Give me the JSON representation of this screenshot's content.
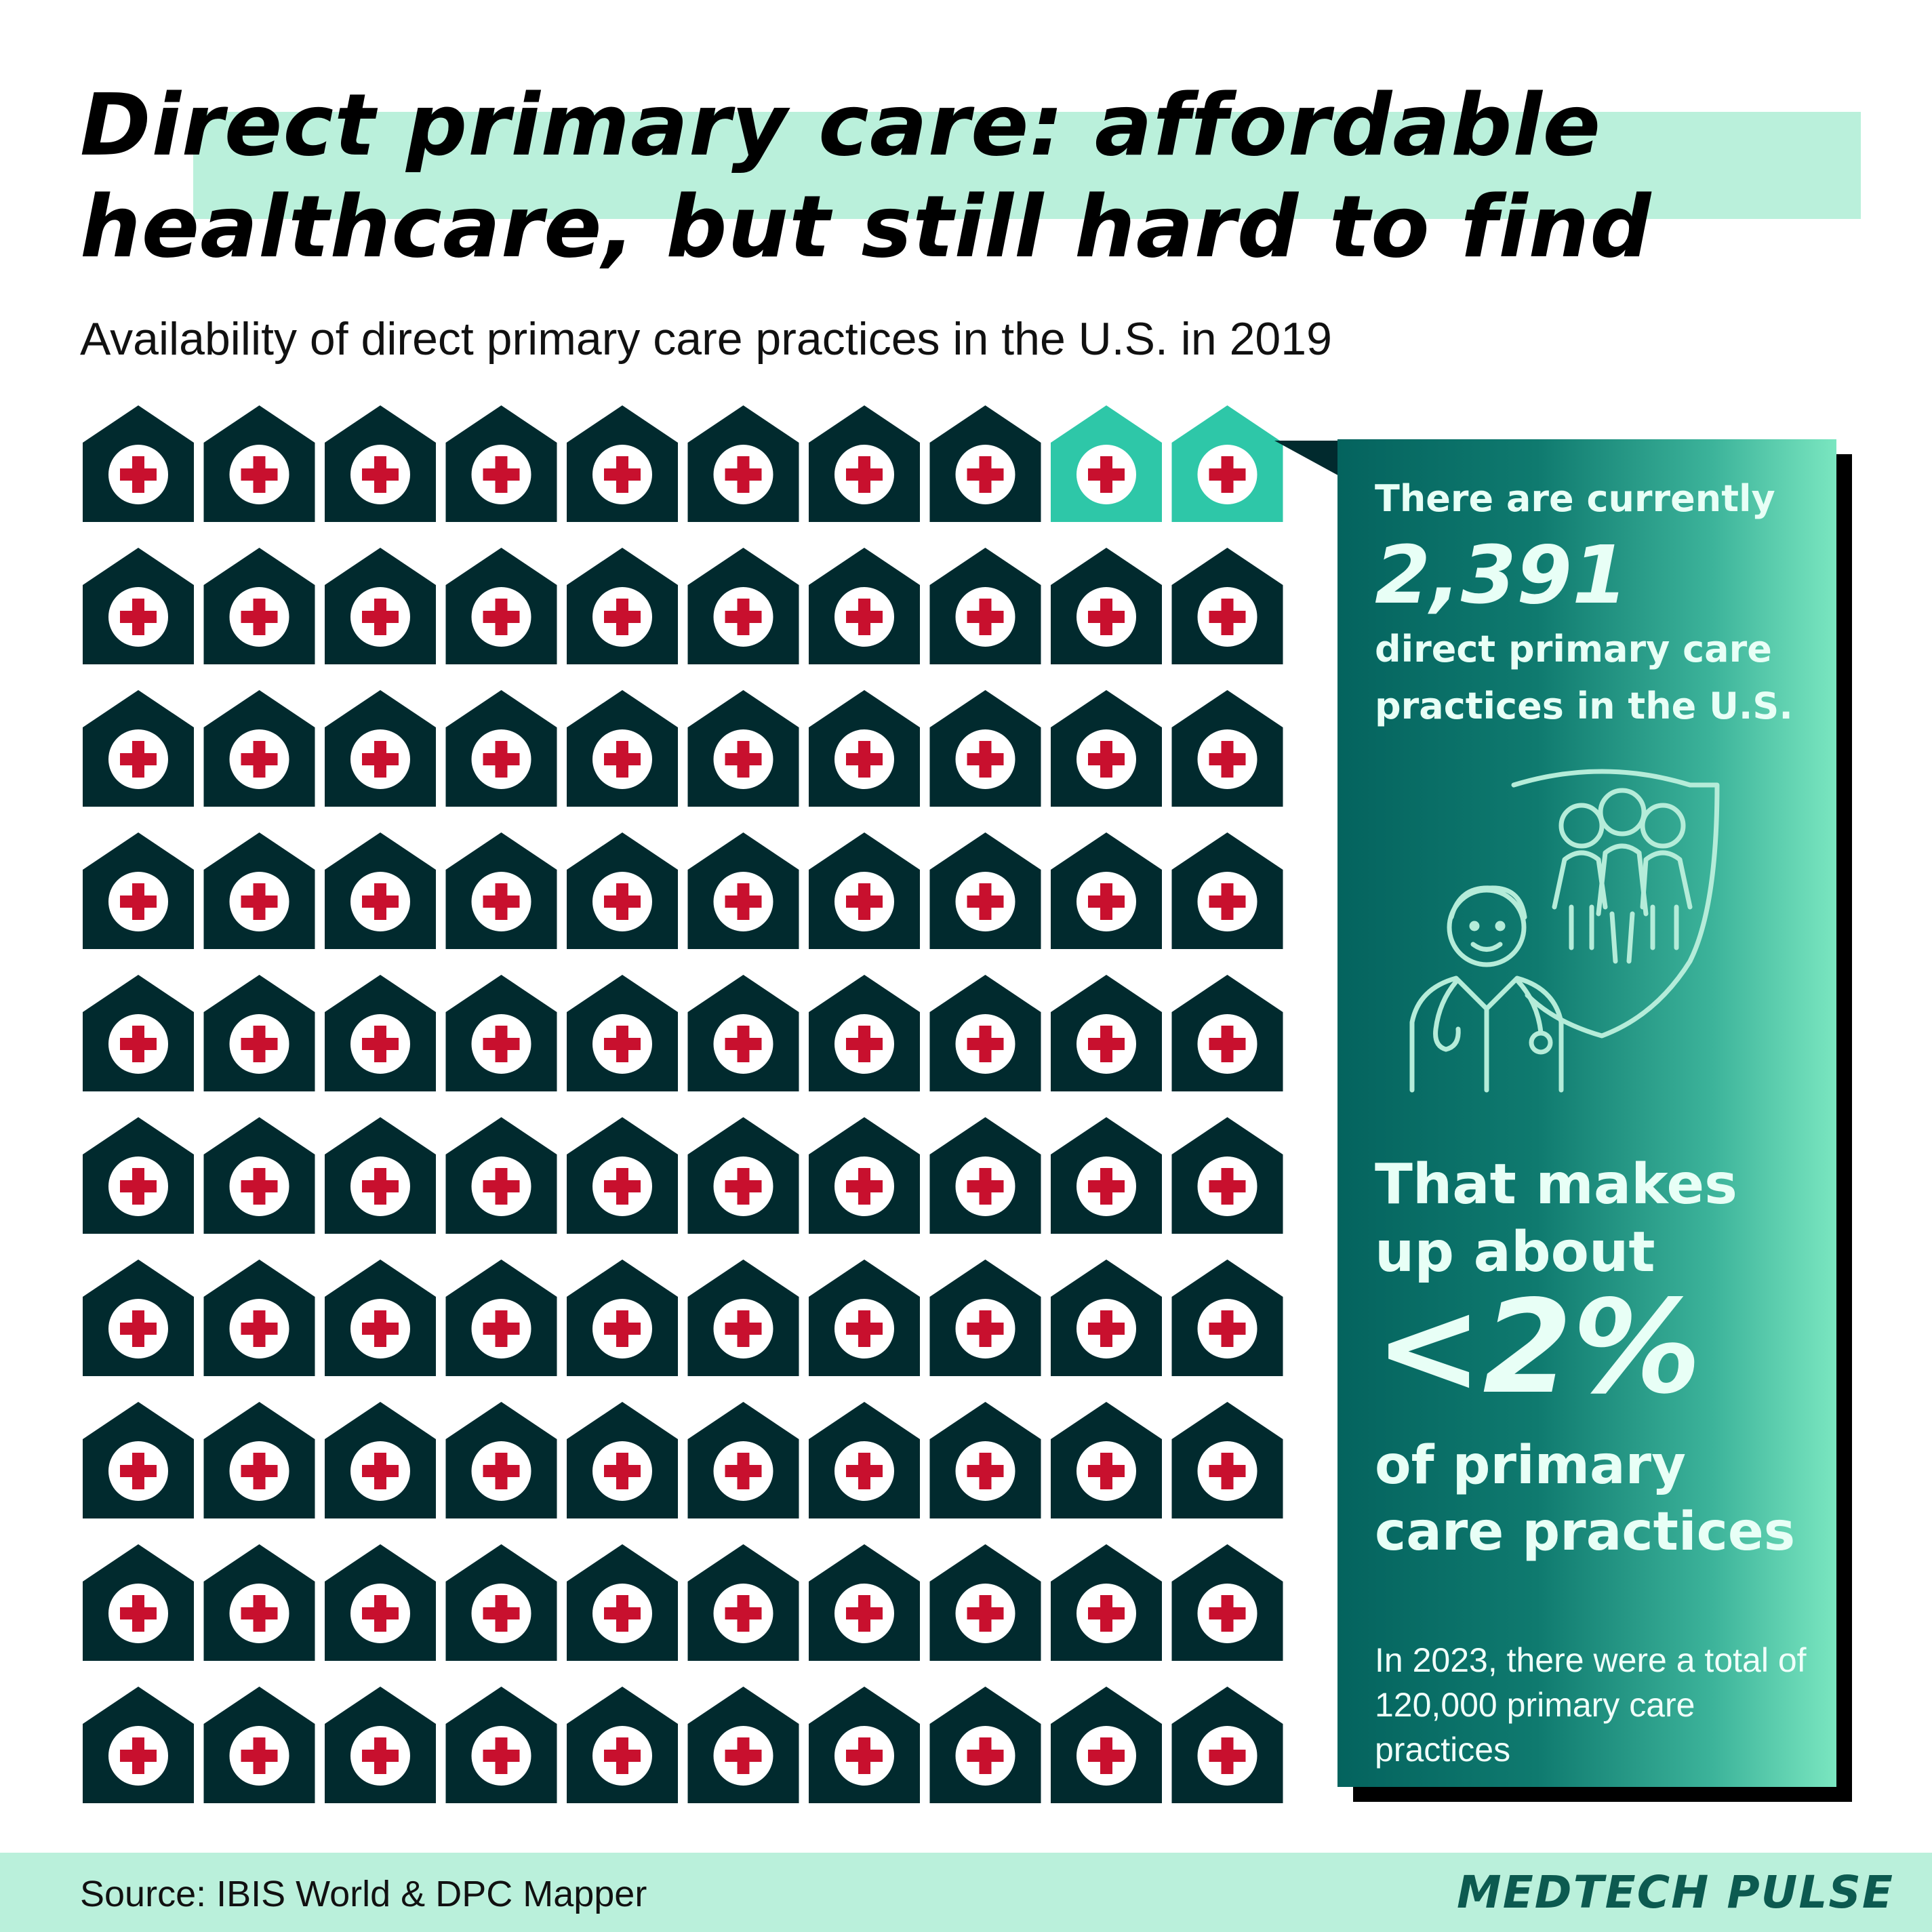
{
  "header": {
    "title_line1": "Direct primary care: affordable",
    "title_line2": "healthcare, but still hard to find",
    "subtitle": "Availability of direct primary care practices in the U.S. in 2019"
  },
  "chart_data": {
    "type": "pictogram",
    "unit_icon": "hospital-house-icon",
    "total_icons": 100,
    "highlighted_icons": 2,
    "grid": {
      "rows": 10,
      "columns": 10
    },
    "colors": {
      "regular": "#012a2e",
      "highlighted": "#2ec7a8",
      "cross": "#c8102e",
      "cross_bg": "#ffffff"
    }
  },
  "panel": {
    "intro": "There are currently",
    "count": "2,391",
    "count_desc": "direct primary care practices in the U.S.",
    "share_intro": "That makes up about",
    "share": "<2%",
    "share_desc": "of primary care practices",
    "note": "In 2023, there were a total of 120,000 primary care practices",
    "illustration_icon": "doctor-family-shield-icon"
  },
  "footer": {
    "source": "Source: IBIS World & DPC Mapper",
    "brand": "MEDTECH PULSE"
  },
  "colors": {
    "title_highlight": "#baf0db",
    "footer_bg": "#baf0db",
    "brand": "#0c5a50"
  }
}
